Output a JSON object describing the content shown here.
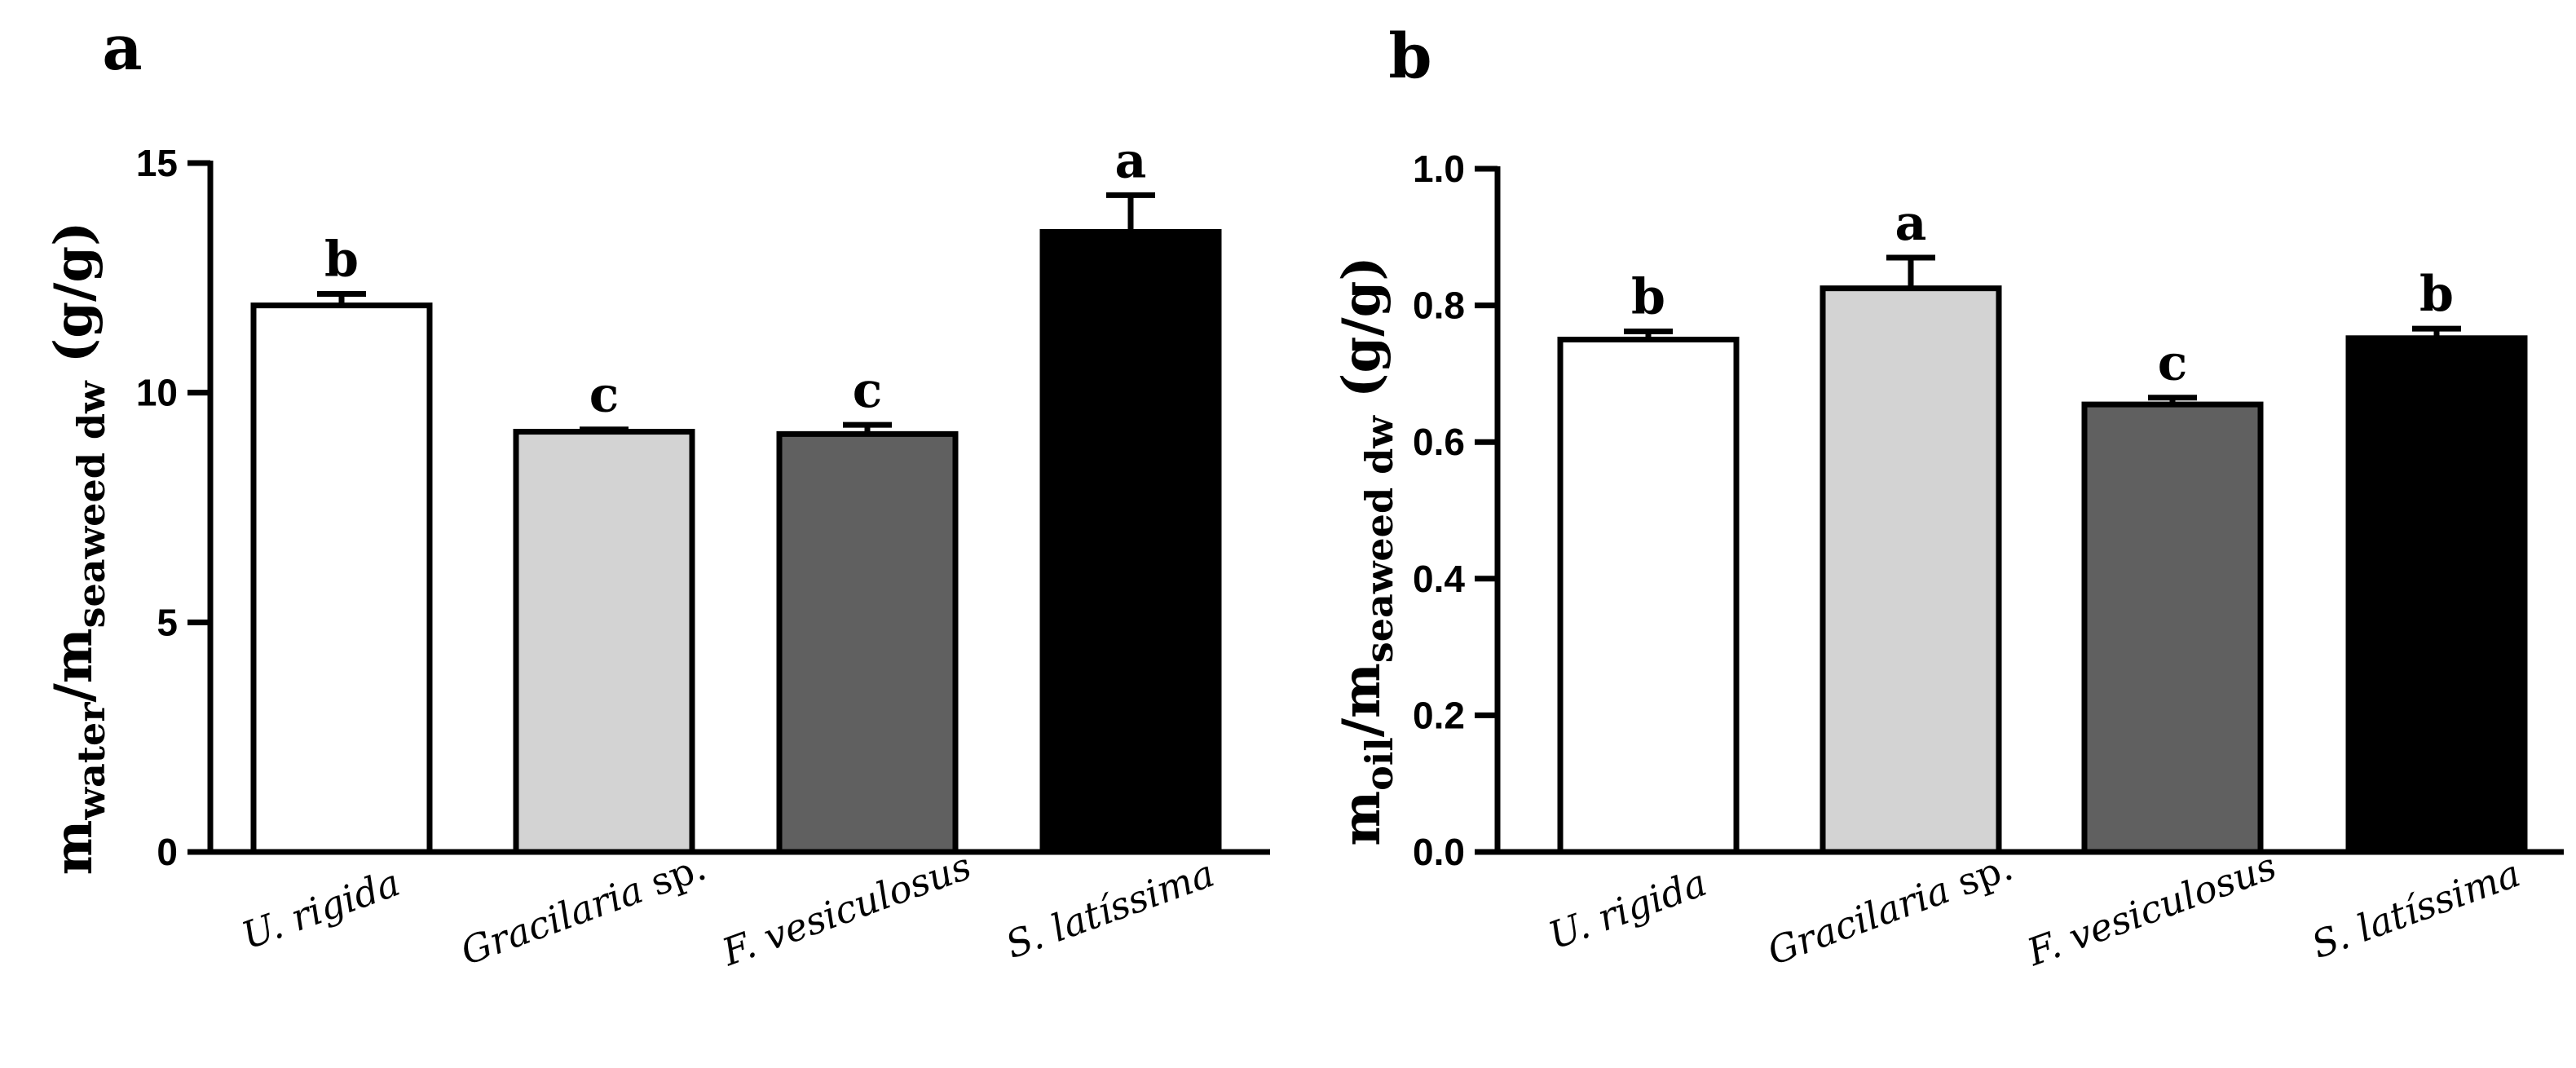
{
  "chart_data": [
    {
      "panel": "a",
      "type": "bar",
      "categories": [
        {
          "name": "U.",
          "name_rest": " rigida"
        },
        {
          "name": "Gracilaria",
          "name_rest": " sp."
        },
        {
          "name": "F.",
          "name_rest": " vesiculosus"
        },
        {
          "name": "S.",
          "name_rest": " latíssima"
        }
      ],
      "values": [
        11.9,
        9.15,
        9.1,
        13.5
      ],
      "errors": [
        0.25,
        0.05,
        0.2,
        0.8
      ],
      "significance": [
        "b",
        "c",
        "c",
        "a"
      ],
      "colors": [
        "#ffffff",
        "#d3d3d3",
        "#606060",
        "#000000"
      ],
      "ylim": [
        0,
        15
      ],
      "yticks": [
        "0",
        "5",
        "10",
        "15"
      ],
      "ytick_values": [
        0,
        5,
        10,
        15
      ],
      "ylabel": {
        "m1": "m",
        "s1": "water",
        "sep": "/m",
        "s2": "seaweed dw",
        "unit": " (g/g)"
      }
    },
    {
      "panel": "b",
      "type": "bar",
      "categories": [
        {
          "name": "U.",
          "name_rest": " rigida"
        },
        {
          "name": "Gracilaria",
          "name_rest": " sp."
        },
        {
          "name": "F.",
          "name_rest": " vesiculosus"
        },
        {
          "name": "S.",
          "name_rest": " latíssima"
        }
      ],
      "values": [
        0.75,
        0.825,
        0.655,
        0.752
      ],
      "errors": [
        0.012,
        0.045,
        0.01,
        0.014
      ],
      "significance": [
        "b",
        "a",
        "c",
        "b"
      ],
      "colors": [
        "#ffffff",
        "#d3d3d3",
        "#606060",
        "#000000"
      ],
      "ylim": [
        0,
        1.0
      ],
      "yticks": [
        "0.0",
        "0.2",
        "0.4",
        "0.6",
        "0.8",
        "1.0"
      ],
      "ytick_values": [
        0,
        0.2,
        0.4,
        0.6,
        0.8,
        1.0
      ],
      "ylabel": {
        "m1": "m",
        "s1": "oil",
        "sep": "/m",
        "s2": "seaweed dw",
        "unit": " (g/g)"
      }
    }
  ]
}
